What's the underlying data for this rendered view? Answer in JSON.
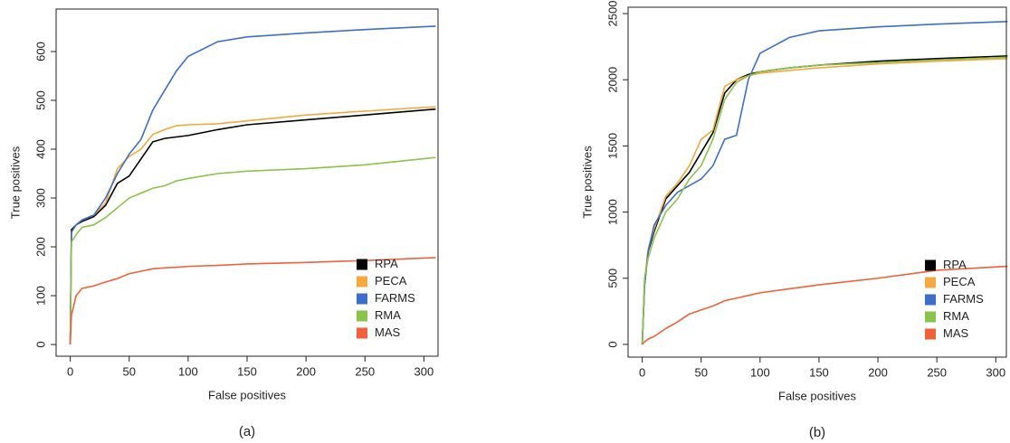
{
  "chart_data": [
    {
      "type": "line",
      "xlabel": "False positives",
      "ylabel": "True positives",
      "caption": "(a)",
      "xlim": [
        -12,
        312
      ],
      "ylim": [
        -24,
        687
      ],
      "xticks": [
        0,
        50,
        100,
        150,
        200,
        250,
        300
      ],
      "yticks": [
        0,
        100,
        200,
        300,
        400,
        500,
        600
      ],
      "legend": "lower right",
      "x": [
        0,
        1,
        5,
        10,
        20,
        30,
        40,
        50,
        60,
        70,
        80,
        90,
        100,
        125,
        150,
        200,
        250,
        310
      ],
      "series": [
        {
          "name": "RPA",
          "color": "#000000",
          "values": [
            0,
            235,
            245,
            252,
            262,
            285,
            330,
            345,
            380,
            415,
            422,
            425,
            428,
            440,
            450,
            460,
            470,
            482
          ]
        },
        {
          "name": "PECA",
          "color": "#f5a83d",
          "values": [
            0,
            230,
            245,
            255,
            265,
            290,
            360,
            385,
            400,
            430,
            440,
            448,
            450,
            452,
            458,
            470,
            478,
            487
          ]
        },
        {
          "name": "FARMS",
          "color": "#3d6fc8",
          "values": [
            0,
            230,
            245,
            255,
            265,
            300,
            350,
            390,
            420,
            480,
            520,
            560,
            590,
            620,
            630,
            638,
            645,
            652
          ]
        },
        {
          "name": "RMA",
          "color": "#8bc34a",
          "values": [
            0,
            210,
            225,
            240,
            245,
            260,
            280,
            300,
            310,
            320,
            325,
            335,
            340,
            350,
            355,
            360,
            368,
            383
          ]
        },
        {
          "name": "MAS",
          "color": "#f0603a",
          "values": [
            0,
            60,
            100,
            115,
            120,
            128,
            135,
            145,
            150,
            155,
            157,
            158,
            160,
            162,
            165,
            168,
            172,
            178
          ]
        }
      ]
    },
    {
      "type": "line",
      "xlabel": "False positives",
      "ylabel": "True positives",
      "caption": "(b)",
      "xlim": [
        -12,
        309
      ],
      "ylim": [
        -96,
        2548
      ],
      "xticks": [
        0,
        50,
        100,
        150,
        200,
        250,
        300
      ],
      "yticks": [
        0,
        500,
        1000,
        1500,
        2000,
        2500
      ],
      "legend": "lower right",
      "x": [
        0,
        2,
        5,
        10,
        20,
        30,
        40,
        50,
        60,
        70,
        80,
        90,
        100,
        125,
        150,
        200,
        250,
        310
      ],
      "series": [
        {
          "name": "RPA",
          "color": "#000000",
          "values": [
            0,
            450,
            700,
            850,
            1100,
            1200,
            1300,
            1450,
            1600,
            1900,
            2000,
            2040,
            2060,
            2090,
            2110,
            2140,
            2160,
            2180
          ]
        },
        {
          "name": "PECA",
          "color": "#f5a83d",
          "values": [
            0,
            480,
            720,
            870,
            1120,
            1220,
            1350,
            1550,
            1620,
            1950,
            2000,
            2030,
            2050,
            2070,
            2090,
            2120,
            2140,
            2160
          ]
        },
        {
          "name": "FARMS",
          "color": "#3d6fc8",
          "values": [
            0,
            450,
            700,
            900,
            1050,
            1150,
            1200,
            1250,
            1350,
            1550,
            1580,
            2000,
            2200,
            2320,
            2370,
            2400,
            2420,
            2440
          ]
        },
        {
          "name": "RMA",
          "color": "#8bc34a",
          "values": [
            0,
            500,
            650,
            800,
            1000,
            1100,
            1250,
            1350,
            1550,
            1850,
            1980,
            2030,
            2060,
            2090,
            2110,
            2130,
            2150,
            2170
          ]
        },
        {
          "name": "MAS",
          "color": "#f0603a",
          "values": [
            0,
            20,
            40,
            60,
            120,
            170,
            230,
            260,
            290,
            330,
            350,
            370,
            390,
            420,
            450,
            500,
            560,
            590
          ]
        }
      ]
    }
  ]
}
